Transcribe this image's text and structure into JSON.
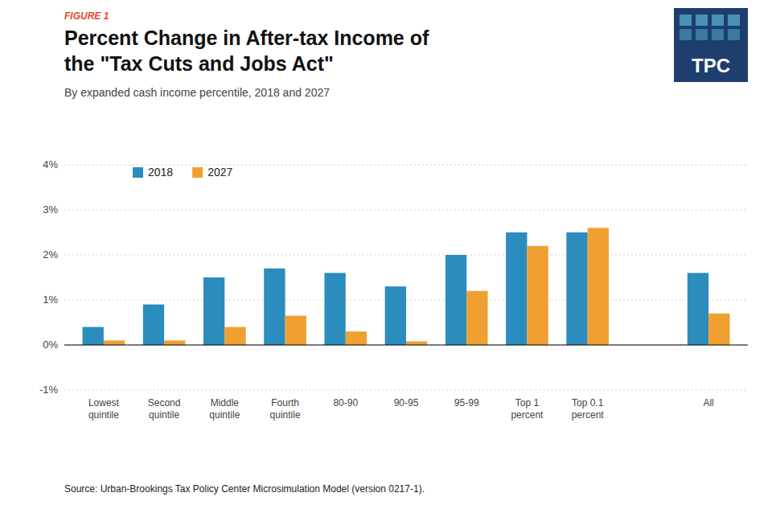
{
  "chart_data": {
    "type": "bar",
    "title": "Percent Change in After-tax Income of\nthe \"Tax Cuts and Jobs Act\"",
    "subtitle": "By expanded cash income percentile, 2018 and 2027",
    "annotations": [
      "FIGURE 1",
      "Source: Urban-Brookings Tax Policy Center Microsimulation Model (version 0217-1).",
      "TPC"
    ],
    "categories": [
      "Lowest\nquintile",
      "Second\nquintile",
      "Middle\nquintile",
      "Fourth\nquintile",
      "80-90",
      "90-95",
      "95-99",
      "Top 1\npercent",
      "Top 0.1\npercent",
      "All"
    ],
    "series": [
      {
        "name": "2018",
        "color": "#2b8cbe",
        "values": [
          0.4,
          0.9,
          1.5,
          1.7,
          1.6,
          1.3,
          2.0,
          2.5,
          2.5,
          1.6
        ]
      },
      {
        "name": "2027",
        "color": "#f0a030",
        "values": [
          0.1,
          0.1,
          0.4,
          0.65,
          0.3,
          0.08,
          1.2,
          2.2,
          2.6,
          0.7
        ]
      }
    ],
    "ylim": [
      -1.0,
      4.0
    ],
    "yticks": [
      {
        "value": -1.0,
        "label": "-1%"
      },
      {
        "value": 0.0,
        "label": "0%"
      },
      {
        "value": 1.0,
        "label": "1%"
      },
      {
        "value": 2.0,
        "label": "2%"
      },
      {
        "value": 3.0,
        "label": "3%"
      },
      {
        "value": 4.0,
        "label": "4%"
      }
    ],
    "grid": true,
    "legend": "upper left"
  }
}
